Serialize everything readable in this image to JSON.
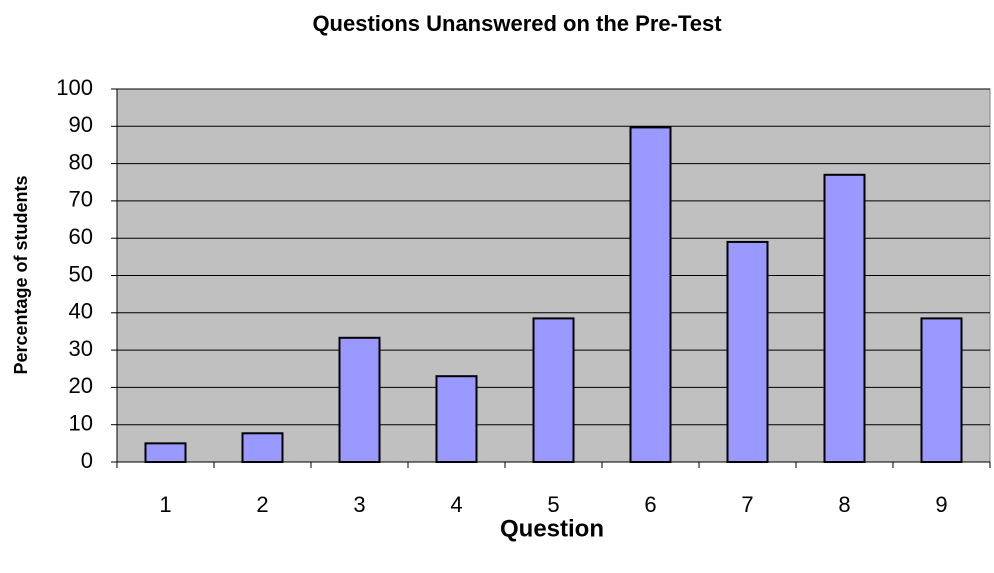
{
  "chart_data": {
    "type": "bar",
    "title": "Questions Unanswered on the Pre-Test",
    "x_label": "Question",
    "y_label": "Percentage of students",
    "categories": [
      "1",
      "2",
      "3",
      "4",
      "5",
      "6",
      "7",
      "8",
      "9"
    ],
    "values": [
      5,
      7.7,
      33.3,
      23,
      38.5,
      89.7,
      59,
      77,
      38.5
    ],
    "color": "#9999ff",
    "plot_background": "#c0c0c0",
    "ylim": [
      0,
      100
    ],
    "yticks": [
      0,
      10,
      20,
      30,
      40,
      50,
      60,
      70,
      80,
      90,
      100
    ],
    "grid": true
  }
}
